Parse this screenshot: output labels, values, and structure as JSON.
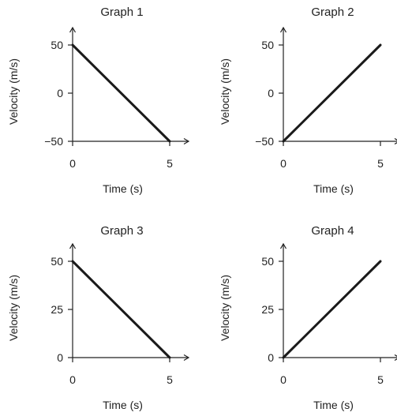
{
  "chart_data": [
    {
      "type": "line",
      "title": "Graph 1",
      "xlabel": "Time (s)",
      "ylabel": "Velocity (m/s)",
      "xlim": [
        0,
        5
      ],
      "ylim": [
        -50,
        50
      ],
      "x_ticks": [
        0,
        5
      ],
      "x_tick_labels": [
        "0",
        "5"
      ],
      "y_ticks": [
        50,
        0,
        -50
      ],
      "y_tick_labels": [
        "50",
        "0",
        "−50"
      ],
      "series": [
        {
          "x": [
            0,
            5
          ],
          "y": [
            50,
            -50
          ]
        }
      ]
    },
    {
      "type": "line",
      "title": "Graph 2",
      "xlabel": "Time (s)",
      "ylabel": "Velocity (m/s)",
      "xlim": [
        0,
        5
      ],
      "ylim": [
        -50,
        50
      ],
      "x_ticks": [
        0,
        5
      ],
      "x_tick_labels": [
        "0",
        "5"
      ],
      "y_ticks": [
        50,
        0,
        -50
      ],
      "y_tick_labels": [
        "50",
        "0",
        "−50"
      ],
      "series": [
        {
          "x": [
            0,
            5
          ],
          "y": [
            -50,
            50
          ]
        }
      ]
    },
    {
      "type": "line",
      "title": "Graph 3",
      "xlabel": "Time (s)",
      "ylabel": "Velocity (m/s)",
      "xlim": [
        0,
        5
      ],
      "ylim": [
        0,
        50
      ],
      "x_ticks": [
        0,
        5
      ],
      "x_tick_labels": [
        "0",
        "5"
      ],
      "y_ticks": [
        50,
        25,
        0
      ],
      "y_tick_labels": [
        "50",
        "25",
        "0"
      ],
      "series": [
        {
          "x": [
            0,
            5
          ],
          "y": [
            50,
            0
          ]
        }
      ]
    },
    {
      "type": "line",
      "title": "Graph 4",
      "xlabel": "Time (s)",
      "ylabel": "Velocity (m/s)",
      "xlim": [
        0,
        5
      ],
      "ylim": [
        0,
        50
      ],
      "x_ticks": [
        0,
        5
      ],
      "x_tick_labels": [
        "0",
        "5"
      ],
      "y_ticks": [
        50,
        25,
        0
      ],
      "y_tick_labels": [
        "50",
        "25",
        "0"
      ],
      "series": [
        {
          "x": [
            0,
            5
          ],
          "y": [
            0,
            50
          ]
        }
      ]
    }
  ]
}
